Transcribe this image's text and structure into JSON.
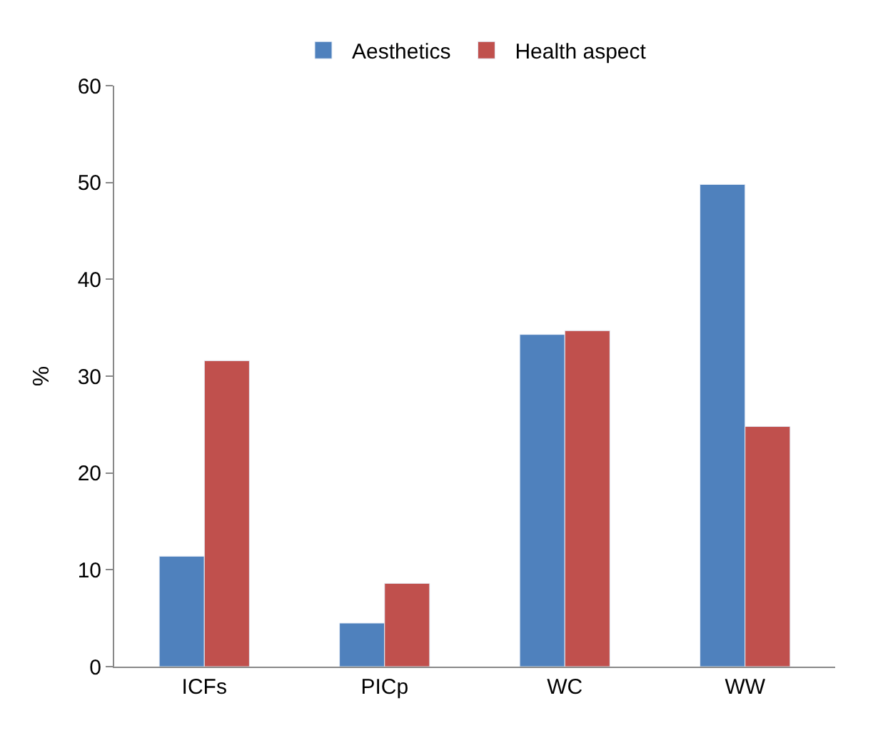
{
  "chart_data": {
    "type": "bar",
    "ylabel": "%",
    "categories": [
      "ICFs",
      "PICp",
      "WC",
      "WW"
    ],
    "series": [
      {
        "name": "Aesthetics",
        "color": "#4f81bd",
        "values": [
          11.4,
          4.5,
          34.3,
          49.8
        ]
      },
      {
        "name": "Health aspect",
        "color": "#c0504d",
        "values": [
          31.6,
          8.6,
          34.7,
          24.8
        ]
      }
    ],
    "ylim": [
      0,
      60
    ],
    "yticks": [
      0,
      10,
      20,
      30,
      40,
      50,
      60
    ],
    "legend": "top"
  }
}
